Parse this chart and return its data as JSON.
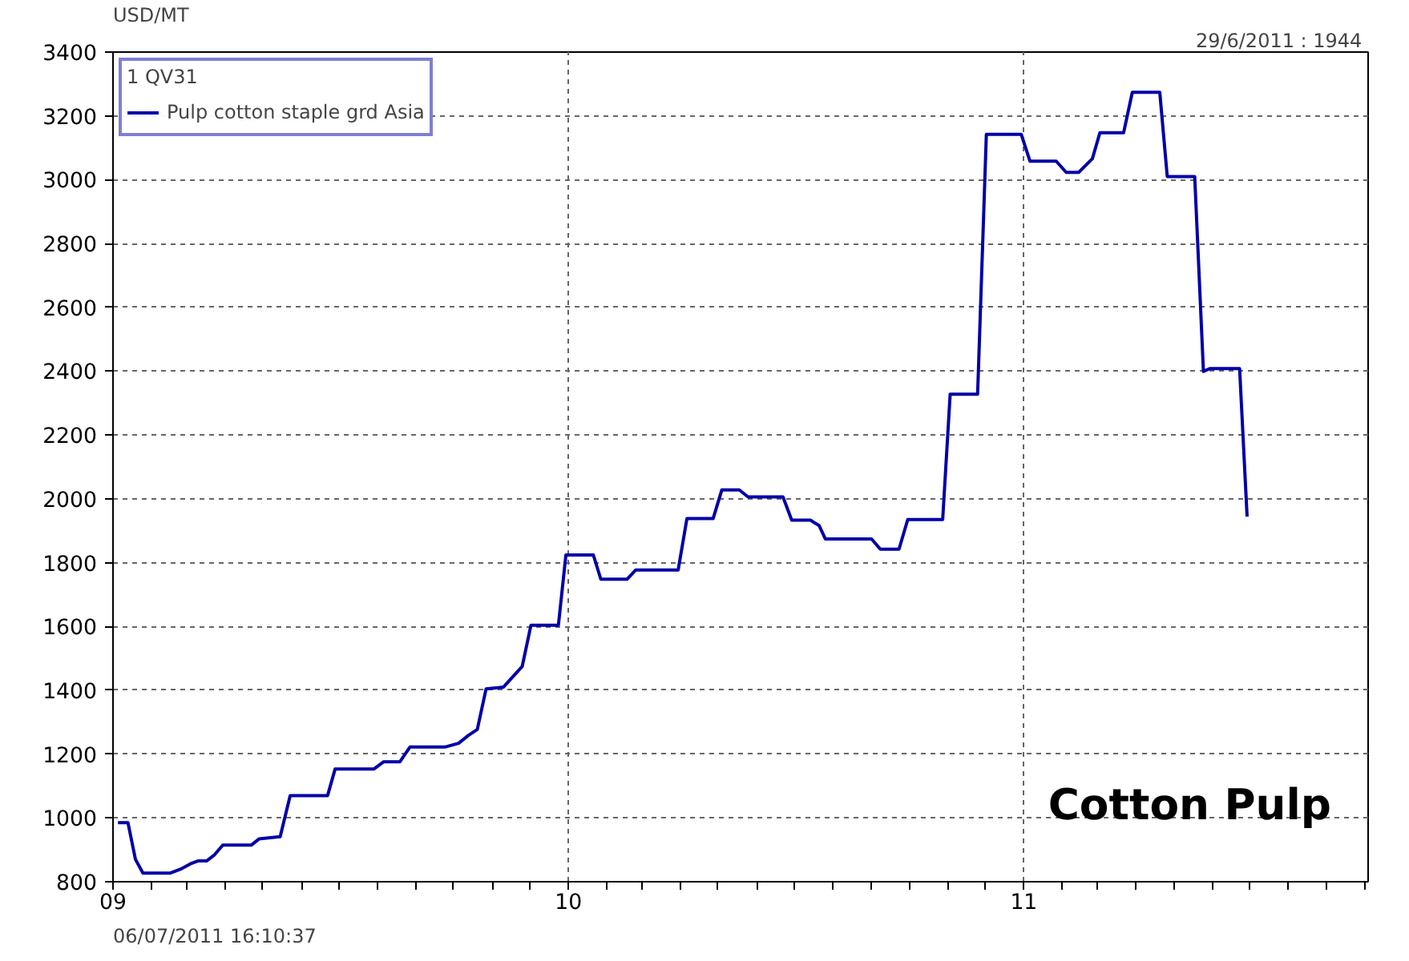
{
  "chart_data": {
    "type": "line",
    "ylabel": "USD/MT",
    "legend_title": "1 QV31",
    "legend": "top left",
    "grid": true,
    "line_style": "solid",
    "annotations": [
      "29/6/2011 :  1944",
      "06/07/2011 16:10:37",
      "Cotton Pulp"
    ],
    "xlim": [
      "2009-01-01",
      "2011-10-04"
    ],
    "ylim": [
      800,
      3400
    ],
    "yticks": [
      800,
      1000,
      1200,
      1400,
      1600,
      1800,
      2000,
      2200,
      2400,
      2600,
      2800,
      3000,
      3200,
      3400
    ],
    "xticks": [
      {
        "value": "2009-01-01",
        "label": "09"
      },
      {
        "value": "2009-02-01",
        "label": null
      },
      {
        "value": "2009-03-01",
        "label": null
      },
      {
        "value": "2009-04-01",
        "label": null
      },
      {
        "value": "2009-05-01",
        "label": null
      },
      {
        "value": "2009-06-01",
        "label": null
      },
      {
        "value": "2009-07-01",
        "label": null
      },
      {
        "value": "2009-08-01",
        "label": null
      },
      {
        "value": "2009-09-01",
        "label": null
      },
      {
        "value": "2009-10-01",
        "label": null
      },
      {
        "value": "2009-11-01",
        "label": null
      },
      {
        "value": "2009-12-01",
        "label": null
      },
      {
        "value": "2010-01-01",
        "label": "10"
      },
      {
        "value": "2010-02-01",
        "label": null
      },
      {
        "value": "2010-03-01",
        "label": null
      },
      {
        "value": "2010-04-01",
        "label": null
      },
      {
        "value": "2010-05-01",
        "label": null
      },
      {
        "value": "2010-06-01",
        "label": null
      },
      {
        "value": "2010-07-01",
        "label": null
      },
      {
        "value": "2010-08-01",
        "label": null
      },
      {
        "value": "2010-09-01",
        "label": null
      },
      {
        "value": "2010-10-01",
        "label": null
      },
      {
        "value": "2010-11-01",
        "label": null
      },
      {
        "value": "2010-12-01",
        "label": null
      },
      {
        "value": "2011-01-01",
        "label": "11"
      },
      {
        "value": "2011-02-01",
        "label": null
      },
      {
        "value": "2011-03-01",
        "label": null
      },
      {
        "value": "2011-04-01",
        "label": null
      },
      {
        "value": "2011-05-01",
        "label": null
      },
      {
        "value": "2011-06-01",
        "label": null
      },
      {
        "value": "2011-07-01",
        "label": null
      },
      {
        "value": "2011-08-01",
        "label": null
      },
      {
        "value": "2011-09-01",
        "label": null
      },
      {
        "value": "2011-10-01",
        "label": null
      }
    ],
    "series": [
      {
        "name": "Pulp cotton staple grd Asia",
        "color": "#0000a8",
        "x": [
          "2009-01-05",
          "2009-01-13",
          "2009-01-19",
          "2009-01-25",
          "2009-02-16",
          "2009-02-24",
          "2009-03-04",
          "2009-03-10",
          "2009-03-17",
          "2009-03-23",
          "2009-03-30",
          "2009-04-22",
          "2009-04-28",
          "2009-05-15",
          "2009-05-23",
          "2009-06-22",
          "2009-06-28",
          "2009-07-29",
          "2009-08-06",
          "2009-08-19",
          "2009-08-27",
          "2009-09-24",
          "2009-10-05",
          "2009-10-13",
          "2009-10-20",
          "2009-10-27",
          "2009-11-10",
          "2009-11-25",
          "2009-12-02",
          "2009-12-24",
          "2009-12-30",
          "2010-01-21",
          "2010-01-27",
          "2010-02-17",
          "2010-02-24",
          "2010-03-30",
          "2010-04-06",
          "2010-04-27",
          "2010-05-04",
          "2010-05-18",
          "2010-05-25",
          "2010-06-22",
          "2010-06-29",
          "2010-07-14",
          "2010-07-21",
          "2010-07-26",
          "2010-09-01",
          "2010-09-08",
          "2010-09-23",
          "2010-09-30",
          "2010-10-28",
          "2010-11-03",
          "2010-11-25",
          "2010-12-02",
          "2010-12-30",
          "2011-01-06",
          "2011-01-27",
          "2011-02-04",
          "2011-02-14",
          "2011-02-25",
          "2011-03-03",
          "2011-03-22",
          "2011-03-29",
          "2011-04-20",
          "2011-04-26",
          "2011-05-18",
          "2011-05-25",
          "2011-05-30",
          "2011-06-23",
          "2011-06-29"
        ],
        "values": [
          985,
          985,
          870,
          827,
          827,
          839,
          856,
          865,
          865,
          883,
          915,
          915,
          934,
          941,
          1070,
          1070,
          1153,
          1153,
          1176,
          1176,
          1222,
          1222,
          1234,
          1259,
          1277,
          1404,
          1410,
          1475,
          1604,
          1604,
          1824,
          1824,
          1748,
          1748,
          1777,
          1777,
          1938,
          1938,
          2028,
          2028,
          2006,
          2006,
          1933,
          1933,
          1916,
          1874,
          1874,
          1842,
          1842,
          1935,
          1935,
          2328,
          2328,
          3142,
          3142,
          3058,
          3058,
          3023,
          3023,
          3066,
          3147,
          3147,
          3274,
          3274,
          3010,
          3010,
          2399,
          2408,
          2408,
          1944
        ]
      }
    ]
  }
}
